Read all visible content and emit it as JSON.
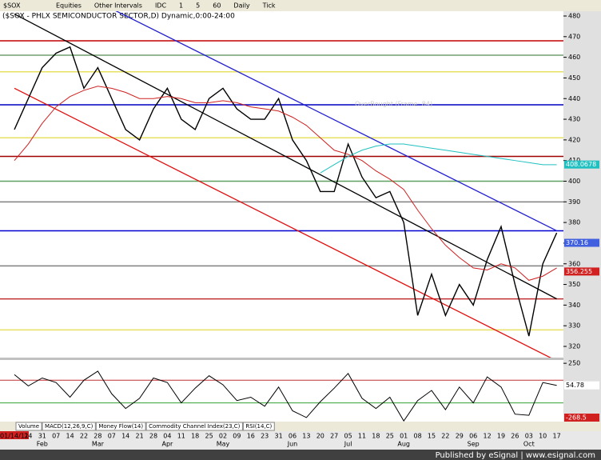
{
  "toolbar": {
    "symbol": "$SOX",
    "items": [
      "Equities",
      "Other Intervals",
      "IDC",
      "1",
      "5",
      "60",
      "Daily",
      "Tick"
    ]
  },
  "chart_data": {
    "type": "line",
    "title": "($SOX - PHLX SEMICONDUCTOR SECTOR,D) Dynamic,0:00-24:00",
    "categories": [
      "01/14/11",
      "24",
      "31",
      "07",
      "14",
      "22",
      "28",
      "07",
      "14",
      "21",
      "28",
      "04",
      "11",
      "18",
      "25",
      "02",
      "09",
      "16",
      "23",
      "31",
      "06",
      "13",
      "20",
      "27",
      "05",
      "11",
      "18",
      "25",
      "01",
      "08",
      "15",
      "22",
      "29",
      "06",
      "12",
      "19",
      "26",
      "03",
      "10",
      "17"
    ],
    "month_labels": [
      null,
      null,
      "Feb",
      null,
      null,
      null,
      "Mar",
      null,
      null,
      null,
      null,
      "Apr",
      null,
      null,
      null,
      "May",
      null,
      null,
      null,
      null,
      "Jun",
      null,
      null,
      null,
      "Jul",
      null,
      null,
      null,
      "Aug",
      null,
      null,
      null,
      null,
      "Sep",
      null,
      null,
      null,
      "Oct",
      null,
      null
    ],
    "series": [
      {
        "color": "#000000",
        "values": [
          425,
          440,
          455,
          462,
          465,
          445,
          455,
          440,
          425,
          420,
          435,
          445,
          430,
          425,
          440,
          445,
          435,
          430,
          430,
          440,
          420,
          410,
          395,
          395,
          418,
          402,
          392,
          395,
          380,
          335,
          355,
          335,
          350,
          340,
          362,
          378,
          350,
          325,
          360,
          375
        ]
      },
      {
        "color": "#d02020",
        "values": [
          410,
          418,
          428,
          436,
          441,
          444,
          446,
          445,
          443,
          440,
          440,
          441,
          440,
          438,
          438,
          439,
          438,
          436,
          435,
          434,
          431,
          427,
          421,
          415,
          413,
          410,
          405,
          401,
          396,
          386,
          377,
          369,
          363,
          358,
          357,
          360,
          358,
          352,
          354,
          358
        ]
      },
      {
        "color": "#20c0c0",
        "values": [
          null,
          null,
          null,
          null,
          null,
          null,
          null,
          null,
          null,
          null,
          null,
          null,
          null,
          null,
          null,
          null,
          null,
          null,
          null,
          null,
          null,
          null,
          404,
          408,
          412,
          415,
          417,
          418,
          418,
          417,
          416,
          415,
          414,
          413,
          412,
          411,
          410,
          409,
          408,
          408
        ]
      }
    ],
    "levels": [
      {
        "value": 468,
        "color": "#c00000"
      },
      {
        "value": 461,
        "color": "#70a070"
      },
      {
        "value": 453,
        "color": "#e8e060"
      },
      {
        "value": 437,
        "color": "#0000c0"
      },
      {
        "value": 421,
        "color": "#e8e060"
      },
      {
        "value": 412,
        "color": "#a00000"
      },
      {
        "value": 400,
        "color": "#60a060"
      },
      {
        "value": 390,
        "color": "#808080"
      },
      {
        "value": 376,
        "color": "#0000d0"
      },
      {
        "value": 359,
        "color": "#808080"
      },
      {
        "value": 343,
        "color": "#c03030"
      },
      {
        "value": 328,
        "color": "#e8e060"
      }
    ],
    "trendlines": [
      {
        "color": "#000000",
        "values": [
          481,
          343
        ]
      },
      {
        "color": "#2020d0",
        "values": [
          507,
          376
        ]
      },
      {
        "color": "#e01010",
        "values": [
          445,
          313
        ]
      }
    ],
    "annotation": "OverBought (Frame: 84)",
    "value_flags": [
      {
        "value": 408.0678,
        "color": "#20c0c0"
      },
      {
        "value": 370.16,
        "color": "#4060e0"
      },
      {
        "value": 356.255,
        "color": "#d02020"
      }
    ],
    "ylim": [
      316,
      484
    ],
    "yticks": [
      320,
      330,
      340,
      350,
      360,
      370,
      380,
      390,
      400,
      410,
      420,
      430,
      440,
      450,
      460,
      470,
      480
    ]
  },
  "oscillator": {
    "tabs": [
      "Volume",
      "MACD(12,26,9,C)",
      "Money Flow(14)",
      "Commodity Channel Index(23,C)",
      "RSI(14,C)"
    ],
    "values": [
      150,
      50,
      120,
      80,
      -50,
      100,
      180,
      -20,
      -150,
      -60,
      120,
      80,
      -100,
      30,
      140,
      60,
      -80,
      -50,
      -130,
      40,
      -170,
      -230,
      -90,
      30,
      160,
      -60,
      -150,
      -50,
      -260,
      -80,
      10,
      -160,
      40,
      -100,
      130,
      40,
      -200,
      -210,
      80,
      54.78
    ],
    "levels": [
      {
        "value": 100,
        "color": "#c03030"
      },
      {
        "value": -100,
        "color": "#30a030"
      }
    ],
    "ylim": [
      -280,
      265
    ],
    "yticks": [
      250
    ],
    "value_flags": [
      {
        "value": 54.78,
        "color": "#ffffff"
      },
      {
        "value": -268.5,
        "color": "#d02020"
      }
    ]
  },
  "footer": "Published by eSignal | www.esignal.com"
}
